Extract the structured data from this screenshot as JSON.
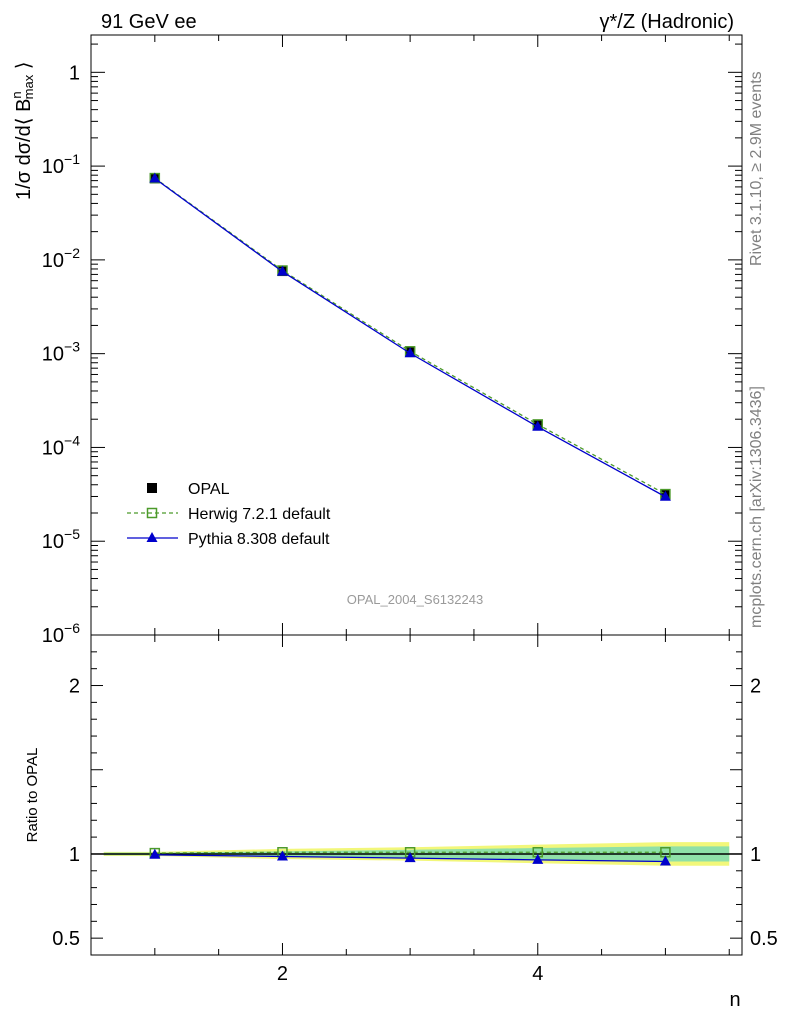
{
  "header": {
    "left": "91 GeV ee",
    "right": "γ*/Z (Hadronic)"
  },
  "side_labels": {
    "rivet": "Rivet 3.1.10, ≥ 2.9M events",
    "mcplots": "mcplots.cern.ch [arXiv:1306.3436]"
  },
  "watermark": "OPAL_2004_S6132243",
  "chart_data": [
    {
      "type": "line",
      "panel": "main",
      "ylabel": "1/σ dσ/d⟨ B^n_max ⟩",
      "yscale": "log",
      "ylim": [
        1e-06,
        2.5
      ],
      "xlim": [
        0.5,
        5.6
      ],
      "ytick_labels": [
        {
          "base": "1",
          "exp": "",
          "value": 1
        },
        {
          "base": "10",
          "exp": "−1",
          "value": 0.1
        },
        {
          "base": "10",
          "exp": "−2",
          "value": 0.01
        },
        {
          "base": "10",
          "exp": "−3",
          "value": 0.001
        },
        {
          "base": "10",
          "exp": "−4",
          "value": 0.0001
        },
        {
          "base": "10",
          "exp": "−5",
          "value": 1e-05
        },
        {
          "base": "10",
          "exp": "−6",
          "value": 1e-06
        }
      ],
      "x": [
        1,
        2,
        3,
        4,
        5
      ],
      "series": [
        {
          "name": "OPAL",
          "values": [
            0.074,
            0.0076,
            0.00104,
            0.000172,
            3.12e-05
          ],
          "color": "#000000",
          "marker": "filled-square"
        },
        {
          "name": "Herwig 7.2.1 default",
          "values": [
            0.0745,
            0.0077,
            0.00106,
            0.000176,
            3.18e-05
          ],
          "color": "#4c9a2a",
          "marker": "open-square",
          "dashed": true
        },
        {
          "name": "Pythia 8.308 default",
          "values": [
            0.0738,
            0.0075,
            0.00101,
            0.000166,
            2.98e-05
          ],
          "color": "#0000cc",
          "marker": "filled-triangle"
        }
      ],
      "legend": "bottom-left"
    },
    {
      "type": "line",
      "panel": "ratio",
      "ylabel": "Ratio to OPAL",
      "xlabel": "n",
      "ylim": [
        0.4,
        2.3
      ],
      "xlim": [
        0.5,
        5.6
      ],
      "xtick_labels": [
        "2",
        "4"
      ],
      "ytick_labels": [
        "2",
        "1",
        "0.5"
      ],
      "x": [
        1,
        2,
        3,
        4,
        5
      ],
      "series": [
        {
          "name": "Herwig 7.2.1 default",
          "values": [
            1.005,
            1.01,
            1.01,
            1.01,
            1.01
          ],
          "color": "#4c9a2a"
        },
        {
          "name": "Pythia 8.308 default",
          "values": [
            0.995,
            0.985,
            0.975,
            0.965,
            0.955
          ],
          "color": "#0000cc"
        }
      ],
      "band_inner_halfwidth": [
        0.008,
        0.015,
        0.025,
        0.035,
        0.045
      ],
      "band_outer_halfwidth": [
        0.012,
        0.03,
        0.04,
        0.055,
        0.07
      ],
      "colors": {
        "inner_band": "#8fe0a8",
        "outer_band": "#f2f77a"
      }
    }
  ]
}
